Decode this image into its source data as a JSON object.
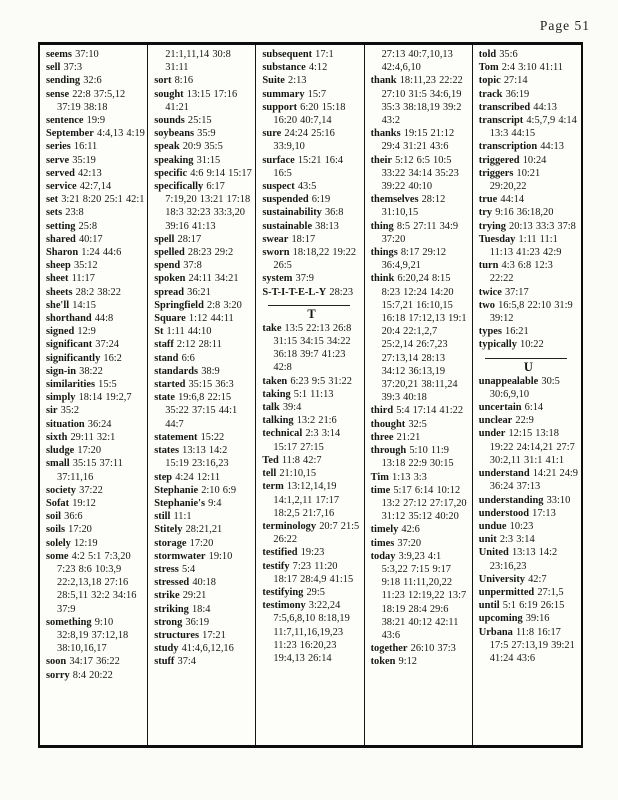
{
  "page": {
    "header": "Page 51"
  },
  "index": {
    "columns": [
      {
        "entries": [
          {
            "w": "seems",
            "r": "37:10"
          },
          {
            "w": "sell",
            "r": "37:3"
          },
          {
            "w": "sending",
            "r": "32:6"
          },
          {
            "w": "sense",
            "r": "22:8 37:5,12 37:19 38:18"
          },
          {
            "w": "sentence",
            "r": "19:9"
          },
          {
            "w": "September",
            "r": "4:4,13 4:19"
          },
          {
            "w": "series",
            "r": "16:11"
          },
          {
            "w": "serve",
            "r": "35:19"
          },
          {
            "w": "served",
            "r": "42:13"
          },
          {
            "w": "service",
            "r": "42:7,14"
          },
          {
            "w": "set",
            "r": "3:21 8:20 25:1 42:1"
          },
          {
            "w": "sets",
            "r": "23:8"
          },
          {
            "w": "setting",
            "r": "25:8"
          },
          {
            "w": "shared",
            "r": "40:17"
          },
          {
            "w": "Sharon",
            "r": "1:24 44:6"
          },
          {
            "w": "sheep",
            "r": "35:12"
          },
          {
            "w": "sheet",
            "r": "11:17"
          },
          {
            "w": "sheets",
            "r": "28:2 38:22"
          },
          {
            "w": "she'll",
            "r": "14:15"
          },
          {
            "w": "shorthand",
            "r": "44:8"
          },
          {
            "w": "signed",
            "r": "12:9"
          },
          {
            "w": "significant",
            "r": "37:24"
          },
          {
            "w": "significantly",
            "r": "16:2"
          },
          {
            "w": "sign-in",
            "r": "38:22"
          },
          {
            "w": "similarities",
            "r": "15:5"
          },
          {
            "w": "simply",
            "r": "18:14 19:2,7"
          },
          {
            "w": "sir",
            "r": "35:2"
          },
          {
            "w": "situation",
            "r": "36:24"
          },
          {
            "w": "sixth",
            "r": "29:11 32:1"
          },
          {
            "w": "sludge",
            "r": "17:20"
          },
          {
            "w": "small",
            "r": "35:15 37:11 37:11,16"
          },
          {
            "w": "society",
            "r": "37:22"
          },
          {
            "w": "Sofat",
            "r": "19:12"
          },
          {
            "w": "soil",
            "r": "36:6"
          },
          {
            "w": "soils",
            "r": "17:20"
          },
          {
            "w": "solely",
            "r": "12:19"
          },
          {
            "w": "some",
            "r": "4:2 5:1 7:3,20 7:23 8:6 10:3,9 22:2,13,18 27:16 28:5,11 32:2 34:16 37:9"
          },
          {
            "w": "something",
            "r": "9:10 32:8,19 37:12,18 38:10,16,17"
          },
          {
            "w": "soon",
            "r": "34:17 36:22"
          },
          {
            "w": "sorry",
            "r": "8:4 20:22"
          }
        ]
      },
      {
        "entries": [
          {
            "w": "",
            "r": "21:1,11,14 30:8 31:11"
          },
          {
            "w": "sort",
            "r": "8:16"
          },
          {
            "w": "sought",
            "r": "13:15 17:16 41:21"
          },
          {
            "w": "sounds",
            "r": "25:15"
          },
          {
            "w": "soybeans",
            "r": "35:9"
          },
          {
            "w": "speak",
            "r": "20:9 35:5"
          },
          {
            "w": "speaking",
            "r": "31:15"
          },
          {
            "w": "specific",
            "r": "4:6 9:14 15:17"
          },
          {
            "w": "specifically",
            "r": "6:17 7:19,20 13:21 17:18 18:3 32:23 33:3,20 39:16 41:13"
          },
          {
            "w": "spell",
            "r": "28:17"
          },
          {
            "w": "spelled",
            "r": "28:23 29:2"
          },
          {
            "w": "spend",
            "r": "37:8"
          },
          {
            "w": "spoken",
            "r": "24:11 34:21"
          },
          {
            "w": "spread",
            "r": "36:21"
          },
          {
            "w": "Springfield",
            "r": "2:8 3:20"
          },
          {
            "w": "Square",
            "r": "1:12 44:11"
          },
          {
            "w": "St",
            "r": "1:11 44:10"
          },
          {
            "w": "staff",
            "r": "2:12 28:11"
          },
          {
            "w": "stand",
            "r": "6:6"
          },
          {
            "w": "standards",
            "r": "38:9"
          },
          {
            "w": "started",
            "r": "35:15 36:3"
          },
          {
            "w": "state",
            "r": "19:6,8 22:15 35:22 37:15 44:1 44:7"
          },
          {
            "w": "statement",
            "r": "15:22"
          },
          {
            "w": "states",
            "r": "13:13 14:2 15:19 23:16,23"
          },
          {
            "w": "step",
            "r": "4:24 12:11"
          },
          {
            "w": "Stephanie",
            "r": "2:10 6:9"
          },
          {
            "w": "Stephanie's",
            "r": "9:4"
          },
          {
            "w": "still",
            "r": "11:1"
          },
          {
            "w": "Stitely",
            "r": "28:21,21"
          },
          {
            "w": "storage",
            "r": "17:20"
          },
          {
            "w": "stormwater",
            "r": "19:10"
          },
          {
            "w": "stress",
            "r": "5:4"
          },
          {
            "w": "stressed",
            "r": "40:18"
          },
          {
            "w": "strike",
            "r": "29:21"
          },
          {
            "w": "striking",
            "r": "18:4"
          },
          {
            "w": "strong",
            "r": "36:19"
          },
          {
            "w": "structures",
            "r": "17:21"
          },
          {
            "w": "study",
            "r": "41:4,6,12,16"
          },
          {
            "w": "stuff",
            "r": "37:4"
          }
        ]
      },
      {
        "entries": [
          {
            "w": "subsequent",
            "r": "17:1"
          },
          {
            "w": "substance",
            "r": "4:12"
          },
          {
            "w": "Suite",
            "r": "2:13"
          },
          {
            "w": "summary",
            "r": "15:7"
          },
          {
            "w": "support",
            "r": "6:20 15:18 16:20 40:7,14"
          },
          {
            "w": "sure",
            "r": "24:24 25:16 33:9,10"
          },
          {
            "w": "surface",
            "r": "15:21 16:4 16:5"
          },
          {
            "w": "suspect",
            "r": "43:5"
          },
          {
            "w": "suspended",
            "r": "6:19"
          },
          {
            "w": "sustainability",
            "r": "36:8"
          },
          {
            "w": "sustainable",
            "r": "38:13"
          },
          {
            "w": "swear",
            "r": "18:17"
          },
          {
            "w": "sworn",
            "r": "18:18,22 19:22 26:5"
          },
          {
            "w": "system",
            "r": "37:9"
          },
          {
            "w": "S-T-I-T-E-L-Y",
            "r": "28:23"
          },
          {
            "divider": "T"
          },
          {
            "w": "take",
            "r": "13:5 22:13 26:8 31:15 34:15 34:22 36:18 39:7 41:23 42:8"
          },
          {
            "w": "taken",
            "r": "6:23 9:5 31:22"
          },
          {
            "w": "taking",
            "r": "5:1 11:13"
          },
          {
            "w": "talk",
            "r": "39:4"
          },
          {
            "w": "talking",
            "r": "13:2 21:6"
          },
          {
            "w": "technical",
            "r": "2:3 3:14 15:17 27:15"
          },
          {
            "w": "Ted",
            "r": "11:8 42:7"
          },
          {
            "w": "tell",
            "r": "21:10,15"
          },
          {
            "w": "term",
            "r": "13:12,14,19 14:1,2,11 17:17 18:2,5 21:7,16"
          },
          {
            "w": "terminology",
            "r": "20:7 21:5 26:22"
          },
          {
            "w": "testified",
            "r": "19:23"
          },
          {
            "w": "testify",
            "r": "7:23 11:20 18:17 28:4,9 41:15"
          },
          {
            "w": "testifying",
            "r": "29:5"
          },
          {
            "w": "testimony",
            "r": "3:22,24 7:5,6,8,10 8:18,19 11:7,11,16,19,23 11:23 16:20,23 19:4,13 26:14"
          }
        ]
      },
      {
        "entries": [
          {
            "w": "",
            "r": "27:13 40:7,10,13 42:4,6,10"
          },
          {
            "w": "thank",
            "r": "18:11,23 22:22 27:10 31:5 34:6,19 35:3 38:18,19 39:2 43:2"
          },
          {
            "w": "thanks",
            "r": "19:15 21:12 29:4 31:21 43:6"
          },
          {
            "w": "their",
            "r": "5:12 6:5 10:5 33:22 34:14 35:23 39:22 40:10"
          },
          {
            "w": "themselves",
            "r": "28:12 31:10,15"
          },
          {
            "w": "thing",
            "r": "8:5 27:11 34:9 37:20"
          },
          {
            "w": "things",
            "r": "8:17 29:12 36:4,9,21"
          },
          {
            "w": "think",
            "r": "6:20,24 8:15 8:23 12:24 14:20 15:7,21 16:10,15 16:18 17:12,13 19:1 20:4 22:1,2,7 25:2,14 26:7,23 27:13,14 28:13 34:12 36:13,19 37:20,21 38:11,24 39:3 40:18"
          },
          {
            "w": "third",
            "r": "5:4 17:14 41:22"
          },
          {
            "w": "thought",
            "r": "32:5"
          },
          {
            "w": "three",
            "r": "21:21"
          },
          {
            "w": "through",
            "r": "5:10 11:9 13:18 22:9 30:15"
          },
          {
            "w": "Tim",
            "r": "1:13 3:3"
          },
          {
            "w": "time",
            "r": "5:17 6:14 10:12 13:2 27:12 27:17,20 31:12 35:12 40:20"
          },
          {
            "w": "timely",
            "r": "42:6"
          },
          {
            "w": "times",
            "r": "37:20"
          },
          {
            "w": "today",
            "r": "3:9,23 4:1 5:3,22 7:15 9:17 9:18 11:11,20,22 11:23 12:19,22 13:7 18:19 28:4 29:6 38:21 40:12 42:11 43:6"
          },
          {
            "w": "together",
            "r": "26:10 37:3"
          },
          {
            "w": "token",
            "r": "9:12"
          }
        ]
      },
      {
        "entries": [
          {
            "w": "told",
            "r": "35:6"
          },
          {
            "w": "Tom",
            "r": "2:4 3:10 41:11"
          },
          {
            "w": "topic",
            "r": "27:14"
          },
          {
            "w": "track",
            "r": "36:19"
          },
          {
            "w": "transcribed",
            "r": "44:13"
          },
          {
            "w": "transcript",
            "r": "4:5,7,9 4:14 13:3 44:15"
          },
          {
            "w": "transcription",
            "r": "44:13"
          },
          {
            "w": "triggered",
            "r": "10:24"
          },
          {
            "w": "triggers",
            "r": "10:21 29:20,22"
          },
          {
            "w": "true",
            "r": "44:14"
          },
          {
            "w": "try",
            "r": "9:16 36:18,20"
          },
          {
            "w": "trying",
            "r": "20:13 33:3 37:8"
          },
          {
            "w": "Tuesday",
            "r": "1:11 11:1 11:13 41:23 42:9"
          },
          {
            "w": "turn",
            "r": "4:3 6:8 12:3 22:22"
          },
          {
            "w": "twice",
            "r": "37:17"
          },
          {
            "w": "two",
            "r": "16:5,8 22:10 31:9 39:12"
          },
          {
            "w": "types",
            "r": "16:21"
          },
          {
            "w": "typically",
            "r": "10:22"
          },
          {
            "divider": "U"
          },
          {
            "w": "unappealable",
            "r": "30:5 30:6,9,10"
          },
          {
            "w": "uncertain",
            "r": "6:14"
          },
          {
            "w": "unclear",
            "r": "22:9"
          },
          {
            "w": "under",
            "r": "12:15 13:18 19:22 24:14,21 27:7 30:2,11 31:1 41:1"
          },
          {
            "w": "understand",
            "r": "14:21 24:9 36:24 37:13"
          },
          {
            "w": "understanding",
            "r": "33:10"
          },
          {
            "w": "understood",
            "r": "17:13"
          },
          {
            "w": "undue",
            "r": "10:23"
          },
          {
            "w": "unit",
            "r": "2:3 3:14"
          },
          {
            "w": "United",
            "r": "13:13 14:2 23:16,23"
          },
          {
            "w": "University",
            "r": "42:7"
          },
          {
            "w": "unpermitted",
            "r": "27:1,5"
          },
          {
            "w": "until",
            "r": "5:1 6:19 26:15"
          },
          {
            "w": "upcoming",
            "r": "39:16"
          },
          {
            "w": "Urbana",
            "r": "11:8 16:17 17:5 27:13,19 39:21 41:24 43:6"
          }
        ]
      }
    ]
  }
}
